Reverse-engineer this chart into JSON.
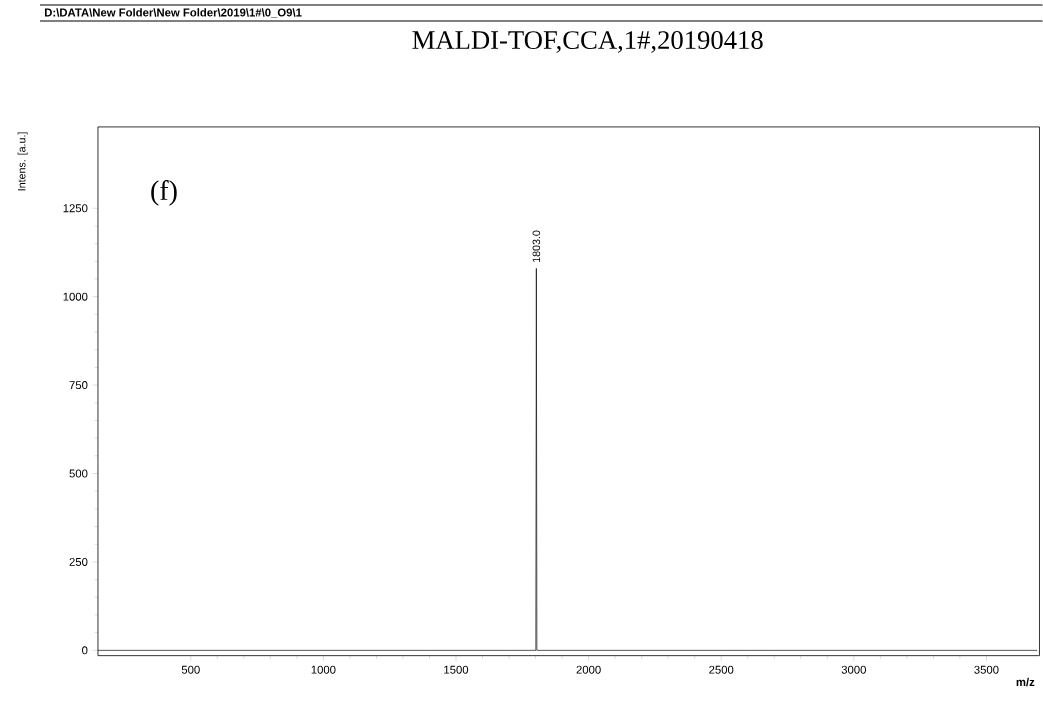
{
  "chart_data": {
    "type": "line",
    "title": "MALDI-TOF,CCA,1#,20190418",
    "xlabel": "m/z",
    "ylabel": "Intens. [a.u.]",
    "annotations": [
      "D:\\DATA\\New Folder\\New Folder\\2019\\1#\\0_O9\\1",
      "(f)",
      {
        "text": "1803.0",
        "x": 1803,
        "y": 1080
      }
    ],
    "x": [
      150,
      1000,
      1797,
      1801,
      1803,
      1805,
      1809,
      2500,
      3690
    ],
    "values": [
      0,
      0,
      0,
      0,
      1080,
      0,
      0,
      0,
      0
    ],
    "color": "#000000",
    "marker": "none",
    "line_style": "solid",
    "xlim": [
      150,
      3700
    ],
    "ylim": [
      -15,
      1480
    ],
    "xticks": [
      500,
      1000,
      1500,
      2000,
      2500,
      3000,
      3500
    ],
    "yticks": [
      0,
      250,
      500,
      750,
      1000,
      1250
    ]
  }
}
